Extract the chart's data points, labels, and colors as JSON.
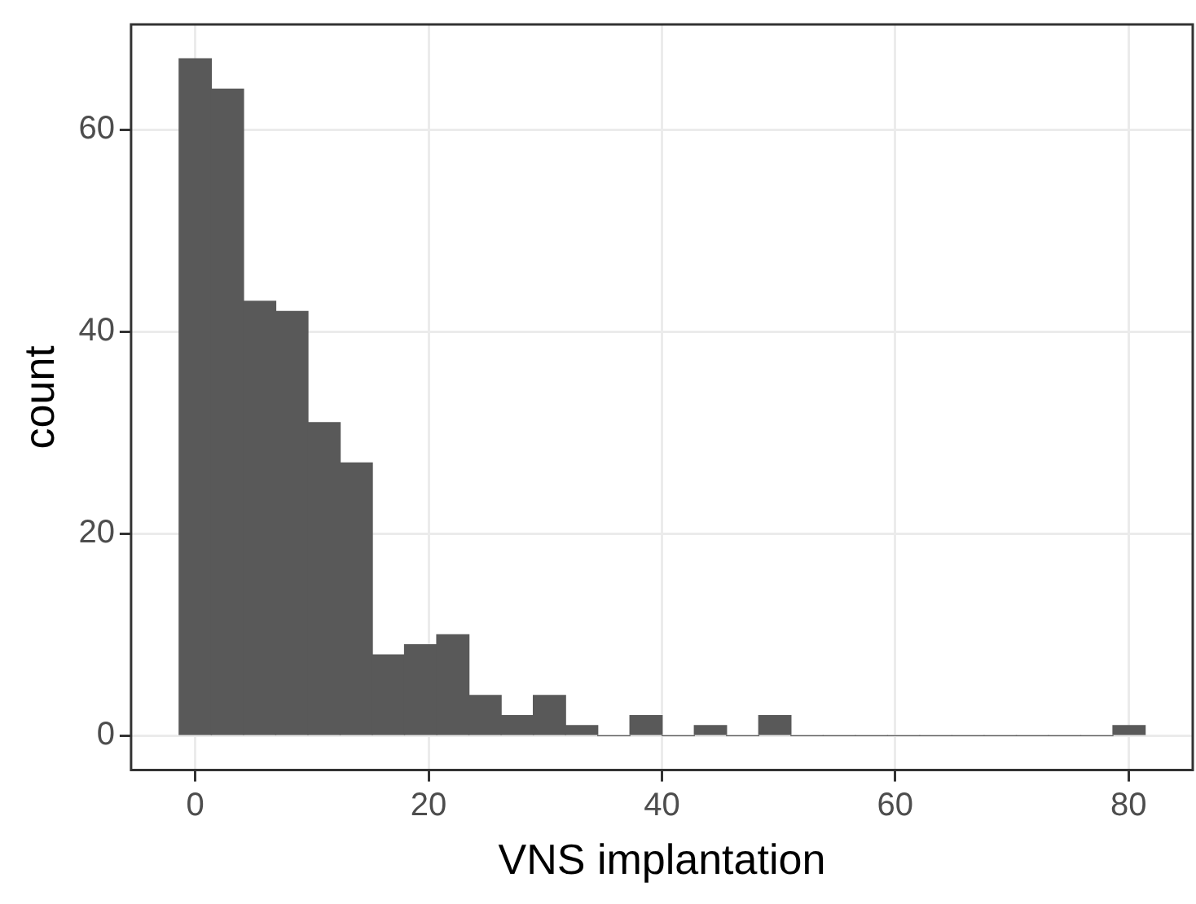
{
  "chart_data": {
    "type": "histogram",
    "xlabel": "VNS implantation",
    "ylabel": "count",
    "bins": [
      -1.38,
      1.38,
      4.14,
      6.9,
      9.66,
      12.42,
      15.18,
      17.94,
      20.7,
      23.46,
      26.22,
      28.98,
      31.74,
      34.5,
      37.26,
      40.02,
      42.78,
      45.54,
      48.3,
      51.06,
      53.82,
      56.58,
      59.34,
      62.1,
      64.86,
      67.62,
      70.38,
      73.14,
      75.9,
      78.66,
      81.42
    ],
    "values": [
      67,
      64,
      43,
      42,
      31,
      27,
      8,
      9,
      10,
      4,
      2,
      4,
      1,
      0,
      2,
      0,
      1,
      0,
      2,
      0,
      0,
      0,
      0,
      0,
      0,
      0,
      0,
      0,
      0,
      1
    ],
    "color": "#595959",
    "xlim": [
      -5.5,
      85.5
    ],
    "ylim": [
      -3.4,
      70.4
    ],
    "xticks": [
      0,
      20,
      40,
      60,
      80
    ],
    "yticks": [
      0,
      20,
      40,
      60
    ],
    "grid": true,
    "legend": false
  }
}
